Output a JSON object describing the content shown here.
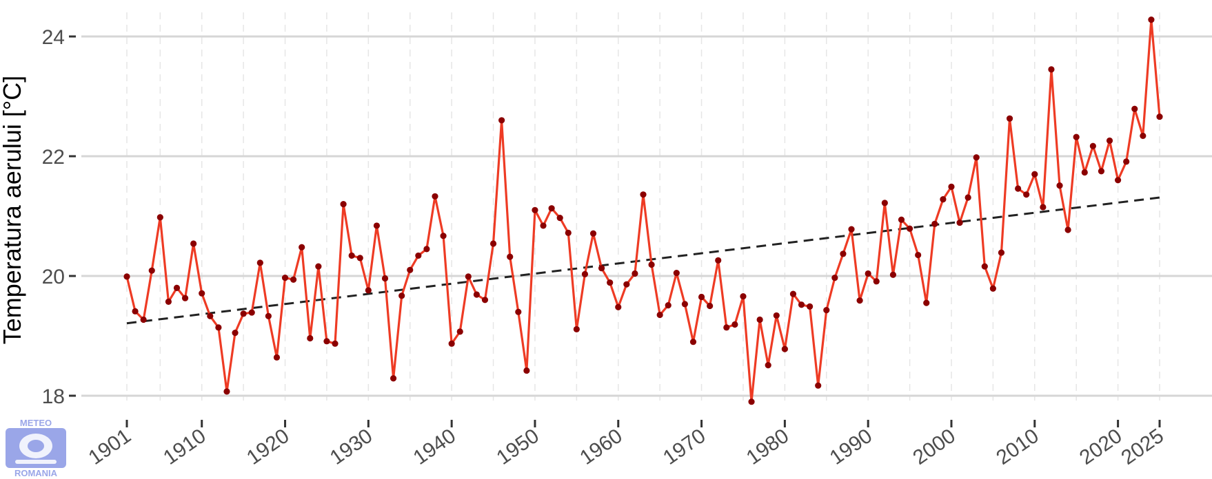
{
  "colors": {
    "line": "#ee3b24",
    "point": "#8b0000",
    "trend": "#222222",
    "grid_major": "#d6d6d6",
    "grid_minor": "#e6e6e6",
    "logo": "#9aa6e8"
  },
  "logo": {
    "top_text": "METEO",
    "bottom_text": "ROMANIA"
  },
  "chart_data": {
    "type": "line",
    "ylabel": "Temperatura aerului [°C]",
    "xlabel": "",
    "title": "",
    "xlim": [
      1899,
      2030
    ],
    "ylim": [
      17.7,
      24.6
    ],
    "y_ticks": [
      18,
      20,
      22,
      24
    ],
    "x_ticks": [
      1901,
      1910,
      1920,
      1930,
      1940,
      1950,
      1960,
      1970,
      1980,
      1990,
      2000,
      2010,
      2020,
      2025
    ],
    "x_minor_grid": [
      1905,
      1915,
      1925,
      1935,
      1945,
      1955,
      1965,
      1975,
      1985,
      1995,
      2005,
      2015
    ],
    "grid": true,
    "series": [
      {
        "type": "line+points",
        "x": [
          1901,
          1902,
          1903,
          1904,
          1905,
          1906,
          1907,
          1908,
          1909,
          1910,
          1911,
          1912,
          1913,
          1914,
          1915,
          1916,
          1917,
          1918,
          1919,
          1920,
          1921,
          1922,
          1923,
          1924,
          1925,
          1926,
          1927,
          1928,
          1929,
          1930,
          1931,
          1932,
          1933,
          1934,
          1935,
          1936,
          1937,
          1938,
          1939,
          1940,
          1941,
          1942,
          1943,
          1944,
          1945,
          1946,
          1947,
          1948,
          1949,
          1950,
          1951,
          1952,
          1953,
          1954,
          1955,
          1956,
          1957,
          1958,
          1959,
          1960,
          1961,
          1962,
          1963,
          1964,
          1965,
          1966,
          1967,
          1968,
          1969,
          1970,
          1971,
          1972,
          1973,
          1974,
          1975,
          1976,
          1977,
          1978,
          1979,
          1980,
          1981,
          1982,
          1983,
          1984,
          1985,
          1986,
          1987,
          1988,
          1989,
          1990,
          1991,
          1992,
          1993,
          1994,
          1995,
          1996,
          1997,
          1998,
          1999,
          2000,
          2001,
          2002,
          2003,
          2004,
          2005,
          2006,
          2007,
          2008,
          2009,
          2010,
          2011,
          2012,
          2013,
          2014,
          2015,
          2016,
          2017,
          2018,
          2019,
          2020,
          2021,
          2022,
          2023,
          2024,
          2025
        ],
        "values": [
          19.99,
          19.41,
          19.27,
          20.09,
          20.98,
          19.57,
          19.8,
          19.63,
          20.54,
          19.71,
          19.33,
          19.14,
          18.07,
          19.05,
          19.37,
          19.39,
          20.22,
          19.33,
          18.64,
          19.97,
          19.94,
          20.48,
          18.96,
          20.16,
          18.91,
          18.87,
          21.2,
          20.34,
          20.3,
          19.76,
          20.84,
          19.96,
          18.29,
          19.67,
          20.1,
          20.34,
          20.45,
          21.33,
          20.67,
          18.87,
          19.07,
          19.99,
          19.69,
          19.6,
          20.54,
          22.6,
          20.32,
          19.4,
          18.42,
          21.1,
          20.84,
          21.13,
          20.97,
          20.72,
          19.11,
          20.03,
          20.71,
          20.13,
          19.89,
          19.48,
          19.86,
          20.04,
          21.36,
          20.19,
          19.35,
          19.51,
          20.05,
          19.53,
          18.9,
          19.65,
          19.5,
          20.26,
          19.14,
          19.19,
          19.66,
          17.9,
          19.27,
          18.51,
          19.34,
          18.78,
          19.7,
          19.52,
          19.49,
          18.17,
          19.43,
          19.97,
          20.37,
          20.78,
          19.59,
          20.04,
          19.91,
          21.22,
          20.02,
          20.94,
          20.79,
          20.35,
          19.55,
          20.87,
          21.28,
          21.49,
          20.89,
          21.31,
          21.98,
          20.16,
          19.79,
          20.39,
          22.63,
          21.46,
          21.36,
          21.7,
          21.15,
          23.45,
          21.51,
          20.77,
          22.32,
          21.73,
          22.17,
          21.75,
          22.26,
          21.6,
          21.91,
          22.79,
          22.34,
          24.28,
          22.66
        ]
      },
      {
        "type": "trend",
        "style": "dashed",
        "x": [
          1901,
          2025
        ],
        "values": [
          19.21,
          21.31
        ]
      }
    ]
  }
}
